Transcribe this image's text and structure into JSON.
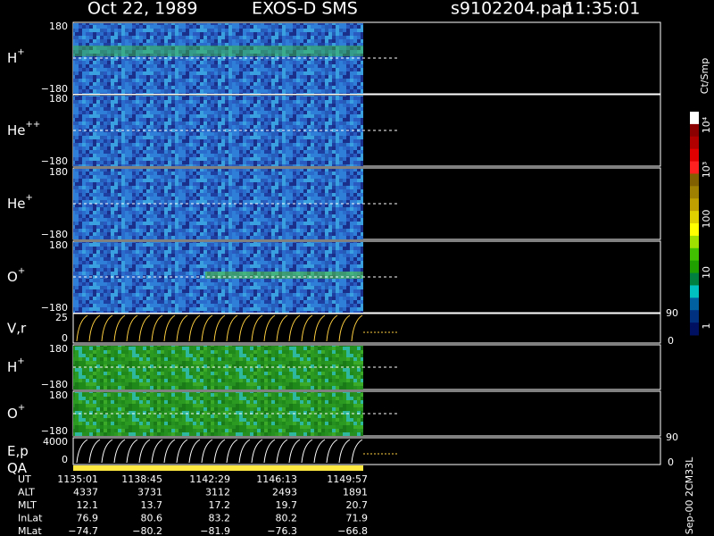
{
  "header": {
    "date": "Oct 22, 1989",
    "instrument": "EXOS-D SMS",
    "file": "s9102204.pap",
    "time": "11:35:01"
  },
  "panels": [
    {
      "label": "H",
      "sup": "+",
      "top": "180",
      "bottom": "−180"
    },
    {
      "label": "He",
      "sup": "++",
      "top": "180",
      "bottom": "−180"
    },
    {
      "label": "He",
      "sup": "+",
      "top": "180",
      "bottom": "−180"
    },
    {
      "label": "O",
      "sup": "+",
      "top": "180",
      "bottom": "−180"
    },
    {
      "label": "V,r",
      "top": "25",
      "bottom": "0",
      "right_top": "90",
      "right_bottom": "0"
    },
    {
      "label": "H",
      "sup": "+",
      "top": "180",
      "bottom": "−180"
    },
    {
      "label": "O",
      "sup": "+",
      "top": "180",
      "bottom": "−180"
    },
    {
      "label": "E,p",
      "top": "4000",
      "bottom": "0",
      "right_top": "90",
      "right_bottom": "0"
    },
    {
      "label": "QA"
    }
  ],
  "colorbar": {
    "unit": "Ct/Smp",
    "ticks": [
      "10⁴",
      "10³",
      "100",
      "10",
      "1"
    ]
  },
  "footer": {
    "rows": [
      {
        "label": "UT",
        "values": [
          "1135:01",
          "1138:45",
          "1142:29",
          "1146:13",
          "1149:57"
        ]
      },
      {
        "label": "ALT",
        "values": [
          "4337",
          "3731",
          "3112",
          "2493",
          "1891"
        ]
      },
      {
        "label": "MLT",
        "values": [
          "12.1",
          "13.7",
          "17.2",
          "19.7",
          "20.7"
        ]
      },
      {
        "label": "InLat",
        "values": [
          "76.9",
          "80.6",
          "83.2",
          "80.2",
          "71.9"
        ]
      },
      {
        "label": "MLat",
        "values": [
          "−74.7",
          "−80.2",
          "−81.9",
          "−76.3",
          "−66.8"
        ]
      }
    ],
    "side": "Sep-00  2CM33L"
  }
}
